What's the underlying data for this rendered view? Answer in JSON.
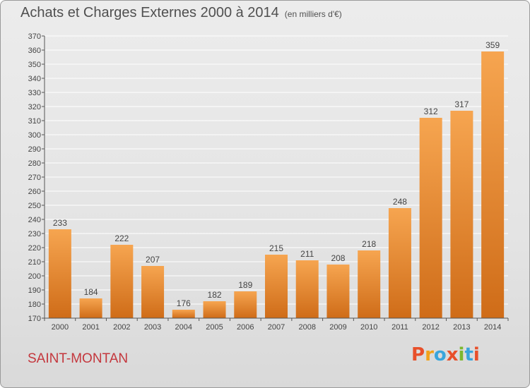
{
  "header": {
    "title": "Achats et Charges Externes 2000 à 2014",
    "subtitle": "(en milliers d'€)"
  },
  "footer": {
    "commune": "SAINT-MONTAN",
    "logo_letters": [
      "P",
      "r",
      "o",
      "x",
      "i",
      "t",
      "i"
    ],
    "logo_colors": [
      "#e8502a",
      "#f2a21a",
      "#39a5dc",
      "#e8502a",
      "#7cb82f",
      "#39a5dc",
      "#e8502a"
    ]
  },
  "colors": {
    "bar_light": "#f6a550",
    "bar_dark": "#cf6c18",
    "grid": "#ffffff",
    "text": "#444444"
  },
  "chart_data": {
    "type": "bar",
    "title": "Achats et Charges Externes 2000 à 2014",
    "subtitle": "(en milliers d'€)",
    "categories": [
      "2000",
      "2001",
      "2002",
      "2003",
      "2004",
      "2005",
      "2006",
      "2007",
      "2008",
      "2009",
      "2010",
      "2011",
      "2012",
      "2013",
      "2014"
    ],
    "values": [
      233,
      184,
      222,
      207,
      176,
      182,
      189,
      215,
      211,
      208,
      218,
      248,
      312,
      317,
      359
    ],
    "ylim": [
      170,
      370
    ],
    "ytick_step": 10,
    "grid": true,
    "data_labels": true,
    "legend": "none"
  }
}
